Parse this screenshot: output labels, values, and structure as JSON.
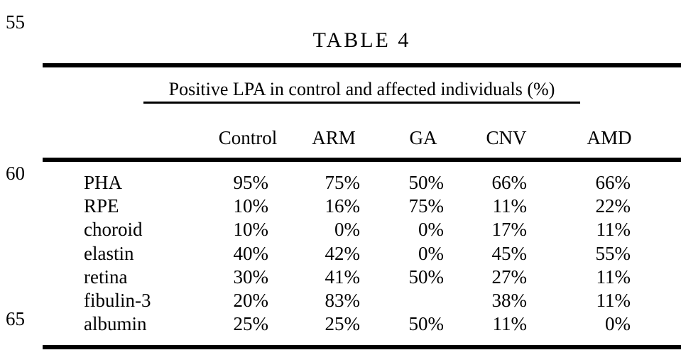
{
  "page": {
    "background_color": "#ffffff",
    "text_color": "#000000",
    "line_numbers": [
      "55",
      "60",
      "65"
    ]
  },
  "table": {
    "title": "TABLE 4",
    "subtitle": "Positive LPA in control and affected individuals (%)",
    "columns": [
      "Control",
      "ARM",
      "GA",
      "CNV",
      "AMD"
    ],
    "rows": [
      {
        "label": "PHA",
        "values": [
          "95%",
          "75%",
          "50%",
          "66%",
          "66%"
        ]
      },
      {
        "label": "RPE",
        "values": [
          "10%",
          "16%",
          "75%",
          "11%",
          "22%"
        ]
      },
      {
        "label": "choroid",
        "values": [
          "10%",
          "0%",
          "0%",
          "17%",
          "11%"
        ]
      },
      {
        "label": "elastin",
        "values": [
          "40%",
          "42%",
          "0%",
          "45%",
          "55%"
        ]
      },
      {
        "label": "retina",
        "values": [
          "30%",
          "41%",
          "50%",
          "27%",
          "11%"
        ]
      },
      {
        "label": "fibulin-3",
        "values": [
          "20%",
          "83%",
          "",
          "38%",
          "11%"
        ]
      },
      {
        "label": "albumin",
        "values": [
          "25%",
          "25%",
          "50%",
          "11%",
          "0%"
        ]
      }
    ]
  }
}
